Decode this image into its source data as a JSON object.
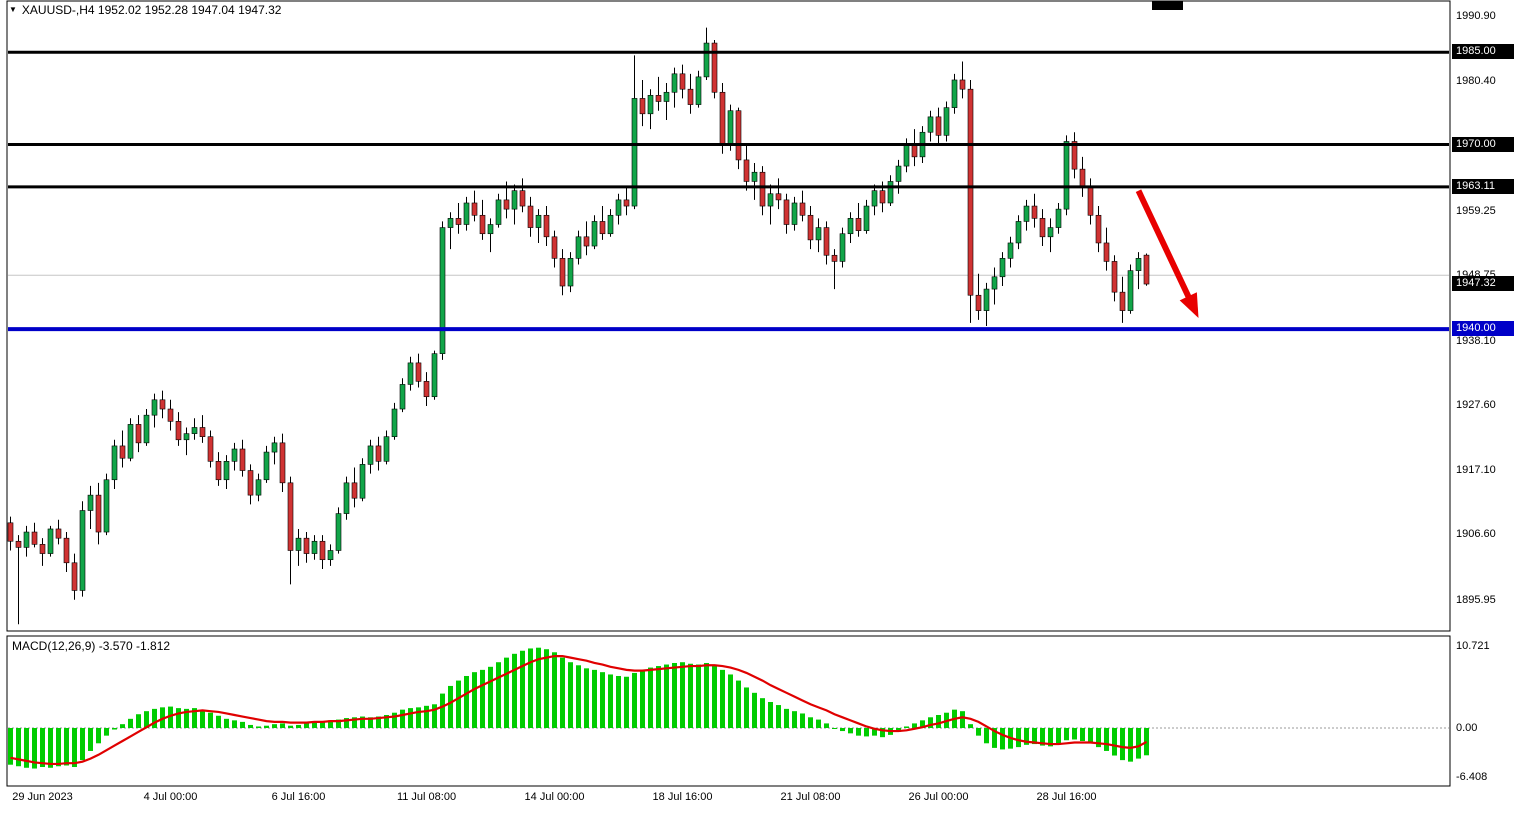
{
  "window": {
    "title": "XAUUSD-,H4 1952.02 1952.28 1947.04 1947.32",
    "caret_icon": "▼",
    "symbol": "XAUUSD-",
    "timeframe": "H4"
  },
  "colors": {
    "bull": "#12a549",
    "bear": "#d03333",
    "wick": "#000000",
    "histogram": "#00cc00",
    "signal": "#e00000",
    "arrow": "#e80000",
    "grid": "#c6c6c6",
    "level_black": "#000000",
    "level_blue": "#0000c8"
  },
  "chart_data": {
    "type": "candlestick",
    "title": "XAUUSD-,H4",
    "symbol": "XAUUSD-",
    "timeframe": "H4",
    "current_bar": {
      "open": 1952.02,
      "high": 1952.28,
      "low": 1947.04,
      "close": 1947.32
    },
    "price_axis": {
      "ticks": [
        "1990.90",
        "1980.40",
        "1959.25",
        "1948.75",
        "1938.10",
        "1927.60",
        "1917.10",
        "1906.60",
        "1895.95"
      ],
      "tick_values": [
        1990.9,
        1980.4,
        1959.25,
        1948.75,
        1938.1,
        1927.6,
        1917.1,
        1906.6,
        1895.95
      ],
      "range": [
        1895.95,
        1990.9
      ]
    },
    "level_lines": [
      {
        "price": 1985.0,
        "label": "1985.00",
        "color": "#000000",
        "width": 3
      },
      {
        "price": 1970.0,
        "label": "1970.00",
        "color": "#000000",
        "width": 3
      },
      {
        "price": 1963.11,
        "label": "1963.11",
        "color": "#000000",
        "width": 3
      },
      {
        "price": 1940.0,
        "label": "1940.00",
        "color": "#0000c8",
        "width": 4
      }
    ],
    "current_price_label": {
      "price": 1947.32,
      "label": "1947.32",
      "color": "#000000"
    },
    "grid_level": 1948.75,
    "time_axis": [
      {
        "index": 4,
        "label": "29 Jun 2023"
      },
      {
        "index": 20,
        "label": "4 Jul 00:00"
      },
      {
        "index": 36,
        "label": "6 Jul 16:00"
      },
      {
        "index": 52,
        "label": "11 Jul 08:00"
      },
      {
        "index": 68,
        "label": "14 Jul 00:00"
      },
      {
        "index": 84,
        "label": "18 Jul 16:00"
      },
      {
        "index": 100,
        "label": "21 Jul 08:00"
      },
      {
        "index": 116,
        "label": "26 Jul 00:00"
      },
      {
        "index": 132,
        "label": "28 Jul 16:00"
      }
    ],
    "trend_arrow": {
      "from_index": 141,
      "from_price": 1962.5,
      "to_index": 148.5,
      "to_price": 1941.8
    },
    "candles": [
      [
        1908.5,
        1909.5,
        1904.0,
        1905.5
      ],
      [
        1905.5,
        1906.5,
        1892.0,
        1904.5
      ],
      [
        1904.5,
        1908.0,
        1903.0,
        1907.0
      ],
      [
        1907.0,
        1908.5,
        1904.5,
        1905.0
      ],
      [
        1905.0,
        1906.0,
        1901.5,
        1903.5
      ],
      [
        1903.5,
        1908.0,
        1903.0,
        1907.5
      ],
      [
        1907.5,
        1909.0,
        1905.0,
        1906.0
      ],
      [
        1906.0,
        1907.0,
        1900.5,
        1902.0
      ],
      [
        1902.0,
        1903.5,
        1896.0,
        1897.5
      ],
      [
        1897.5,
        1912.0,
        1896.5,
        1910.5
      ],
      [
        1910.5,
        1914.5,
        1907.5,
        1913.0
      ],
      [
        1913.0,
        1915.0,
        1905.0,
        1907.0
      ],
      [
        1907.0,
        1916.5,
        1906.5,
        1915.5
      ],
      [
        1915.5,
        1922.0,
        1914.0,
        1921.0
      ],
      [
        1921.0,
        1923.5,
        1917.5,
        1919.0
      ],
      [
        1919.0,
        1925.5,
        1918.5,
        1924.5
      ],
      [
        1924.5,
        1926.0,
        1920.0,
        1921.5
      ],
      [
        1921.5,
        1927.0,
        1921.0,
        1926.0
      ],
      [
        1926.0,
        1929.5,
        1924.0,
        1928.5
      ],
      [
        1928.5,
        1930.0,
        1925.5,
        1927.0
      ],
      [
        1927.0,
        1928.5,
        1923.5,
        1925.0
      ],
      [
        1925.0,
        1926.5,
        1921.0,
        1922.0
      ],
      [
        1922.0,
        1924.0,
        1919.5,
        1923.0
      ],
      [
        1923.0,
        1925.5,
        1922.0,
        1924.0
      ],
      [
        1924.0,
        1926.0,
        1921.5,
        1922.5
      ],
      [
        1922.5,
        1923.5,
        1917.5,
        1918.5
      ],
      [
        1918.5,
        1920.0,
        1914.5,
        1915.5
      ],
      [
        1915.5,
        1919.5,
        1914.0,
        1918.5
      ],
      [
        1918.5,
        1921.5,
        1917.0,
        1920.5
      ],
      [
        1920.5,
        1922.0,
        1916.0,
        1917.0
      ],
      [
        1917.0,
        1918.0,
        1911.5,
        1913.0
      ],
      [
        1913.0,
        1916.5,
        1912.0,
        1915.5
      ],
      [
        1915.5,
        1921.0,
        1915.0,
        1920.0
      ],
      [
        1920.0,
        1922.5,
        1918.0,
        1921.5
      ],
      [
        1921.5,
        1923.0,
        1913.5,
        1915.0
      ],
      [
        1915.0,
        1916.0,
        1898.5,
        1904.0
      ],
      [
        1904.0,
        1907.5,
        1901.5,
        1906.0
      ],
      [
        1906.0,
        1907.0,
        1902.0,
        1903.5
      ],
      [
        1903.5,
        1906.5,
        1902.5,
        1905.5
      ],
      [
        1905.5,
        1906.5,
        1901.0,
        1902.5
      ],
      [
        1902.5,
        1905.0,
        1901.5,
        1904.0
      ],
      [
        1904.0,
        1911.0,
        1903.5,
        1910.0
      ],
      [
        1910.0,
        1916.0,
        1909.0,
        1915.0
      ],
      [
        1915.0,
        1917.5,
        1911.0,
        1912.5
      ],
      [
        1912.5,
        1919.0,
        1912.0,
        1918.0
      ],
      [
        1918.0,
        1922.0,
        1916.5,
        1921.0
      ],
      [
        1921.0,
        1922.5,
        1917.0,
        1918.5
      ],
      [
        1918.5,
        1923.5,
        1918.0,
        1922.5
      ],
      [
        1922.5,
        1928.0,
        1922.0,
        1927.0
      ],
      [
        1927.0,
        1932.0,
        1926.5,
        1931.0
      ],
      [
        1931.0,
        1935.5,
        1930.0,
        1934.5
      ],
      [
        1934.5,
        1936.0,
        1930.5,
        1931.5
      ],
      [
        1931.5,
        1933.0,
        1927.5,
        1929.0
      ],
      [
        1929.0,
        1936.5,
        1928.5,
        1936.0
      ],
      [
        1936.0,
        1957.5,
        1935.0,
        1956.5
      ],
      [
        1956.5,
        1959.0,
        1953.0,
        1958.0
      ],
      [
        1958.0,
        1960.5,
        1955.5,
        1957.0
      ],
      [
        1957.0,
        1961.5,
        1956.0,
        1960.5
      ],
      [
        1960.5,
        1962.5,
        1957.5,
        1958.5
      ],
      [
        1958.5,
        1961.0,
        1954.5,
        1955.5
      ],
      [
        1955.5,
        1958.0,
        1952.5,
        1957.0
      ],
      [
        1957.0,
        1962.0,
        1956.5,
        1961.0
      ],
      [
        1961.0,
        1964.0,
        1958.0,
        1959.5
      ],
      [
        1959.5,
        1963.5,
        1957.0,
        1962.5
      ],
      [
        1962.5,
        1964.5,
        1959.0,
        1960.0
      ],
      [
        1960.0,
        1961.5,
        1955.0,
        1956.5
      ],
      [
        1956.5,
        1959.5,
        1954.0,
        1958.5
      ],
      [
        1958.5,
        1960.0,
        1953.5,
        1955.0
      ],
      [
        1955.0,
        1956.0,
        1950.0,
        1951.5
      ],
      [
        1951.5,
        1953.0,
        1945.5,
        1947.0
      ],
      [
        1947.0,
        1952.5,
        1946.0,
        1951.5
      ],
      [
        1951.5,
        1956.0,
        1950.5,
        1955.0
      ],
      [
        1955.0,
        1957.5,
        1952.0,
        1953.5
      ],
      [
        1953.5,
        1958.5,
        1953.0,
        1957.5
      ],
      [
        1957.5,
        1960.0,
        1954.5,
        1955.5
      ],
      [
        1955.5,
        1959.5,
        1955.0,
        1958.5
      ],
      [
        1958.5,
        1962.0,
        1957.0,
        1961.0
      ],
      [
        1961.0,
        1963.0,
        1958.5,
        1960.0
      ],
      [
        1960.0,
        1984.5,
        1959.5,
        1977.5
      ],
      [
        1977.5,
        1980.5,
        1973.0,
        1975.0
      ],
      [
        1975.0,
        1979.0,
        1972.5,
        1978.0
      ],
      [
        1978.0,
        1981.0,
        1975.5,
        1977.0
      ],
      [
        1977.0,
        1980.0,
        1974.0,
        1978.5
      ],
      [
        1978.5,
        1982.5,
        1976.0,
        1981.5
      ],
      [
        1981.5,
        1983.0,
        1977.5,
        1979.0
      ],
      [
        1979.0,
        1981.5,
        1975.0,
        1976.5
      ],
      [
        1976.5,
        1982.0,
        1976.0,
        1981.0
      ],
      [
        1981.0,
        1989.0,
        1980.5,
        1986.5
      ],
      [
        1986.5,
        1987.0,
        1977.5,
        1978.5
      ],
      [
        1978.5,
        1980.0,
        1968.5,
        1970.0
      ],
      [
        1970.0,
        1976.5,
        1969.0,
        1975.5
      ],
      [
        1975.5,
        1976.0,
        1966.0,
        1967.5
      ],
      [
        1967.5,
        1970.0,
        1962.5,
        1964.0
      ],
      [
        1964.0,
        1967.0,
        1961.0,
        1965.5
      ],
      [
        1965.5,
        1966.5,
        1958.5,
        1960.0
      ],
      [
        1960.0,
        1963.5,
        1957.0,
        1962.0
      ],
      [
        1962.0,
        1964.5,
        1959.5,
        1961.0
      ],
      [
        1961.0,
        1962.0,
        1955.5,
        1957.0
      ],
      [
        1957.0,
        1961.5,
        1956.0,
        1960.5
      ],
      [
        1960.5,
        1962.5,
        1957.5,
        1958.5
      ],
      [
        1958.5,
        1960.0,
        1953.0,
        1954.5
      ],
      [
        1954.5,
        1958.0,
        1952.5,
        1956.5
      ],
      [
        1956.5,
        1957.5,
        1950.5,
        1952.0
      ],
      [
        1952.0,
        1953.0,
        1946.5,
        1951.0
      ],
      [
        1951.0,
        1956.5,
        1950.0,
        1955.5
      ],
      [
        1955.5,
        1959.0,
        1954.0,
        1958.0
      ],
      [
        1958.0,
        1960.5,
        1955.0,
        1956.0
      ],
      [
        1956.0,
        1961.0,
        1955.5,
        1960.0
      ],
      [
        1960.0,
        1963.5,
        1958.5,
        1962.5
      ],
      [
        1962.5,
        1964.0,
        1959.0,
        1960.5
      ],
      [
        1960.5,
        1965.0,
        1960.0,
        1964.0
      ],
      [
        1964.0,
        1967.5,
        1962.0,
        1966.5
      ],
      [
        1966.5,
        1971.0,
        1965.5,
        1970.0
      ],
      [
        1970.0,
        1972.5,
        1966.5,
        1968.0
      ],
      [
        1968.0,
        1973.0,
        1967.0,
        1972.0
      ],
      [
        1972.0,
        1975.5,
        1970.5,
        1974.5
      ],
      [
        1974.5,
        1976.0,
        1970.0,
        1971.5
      ],
      [
        1971.5,
        1977.0,
        1970.5,
        1976.0
      ],
      [
        1976.0,
        1981.5,
        1975.0,
        1980.5
      ],
      [
        1980.5,
        1983.5,
        1977.5,
        1979.0
      ],
      [
        1979.0,
        1980.5,
        1941.0,
        1945.5
      ],
      [
        1945.5,
        1949.0,
        1941.5,
        1943.0
      ],
      [
        1943.0,
        1947.5,
        1940.5,
        1946.5
      ],
      [
        1946.5,
        1950.0,
        1944.0,
        1948.5
      ],
      [
        1948.5,
        1952.5,
        1947.0,
        1951.5
      ],
      [
        1951.5,
        1955.0,
        1950.0,
        1954.0
      ],
      [
        1954.0,
        1958.5,
        1953.0,
        1957.5
      ],
      [
        1957.5,
        1961.0,
        1956.0,
        1960.0
      ],
      [
        1960.0,
        1962.0,
        1956.5,
        1958.0
      ],
      [
        1958.0,
        1959.5,
        1953.5,
        1955.0
      ],
      [
        1955.0,
        1958.0,
        1952.5,
        1956.5
      ],
      [
        1956.5,
        1960.5,
        1955.5,
        1959.5
      ],
      [
        1959.5,
        1971.5,
        1958.5,
        1970.5
      ],
      [
        1970.5,
        1972.0,
        1964.5,
        1966.0
      ],
      [
        1966.0,
        1968.0,
        1961.5,
        1963.0
      ],
      [
        1963.0,
        1964.5,
        1957.0,
        1958.5
      ],
      [
        1958.5,
        1960.0,
        1952.5,
        1954.0
      ],
      [
        1954.0,
        1956.5,
        1949.5,
        1951.0
      ],
      [
        1951.0,
        1952.0,
        1944.5,
        1946.0
      ],
      [
        1946.0,
        1948.5,
        1941.0,
        1943.0
      ],
      [
        1943.0,
        1950.5,
        1942.5,
        1949.5
      ],
      [
        1949.5,
        1952.5,
        1946.5,
        1951.5
      ],
      [
        1952.02,
        1952.28,
        1947.04,
        1947.32
      ]
    ],
    "macd": {
      "label": "MACD(12,26,9) -3.570 -1.812",
      "params": "12,26,9",
      "value": -3.57,
      "signal_value": -1.812,
      "axis_ticks": [
        "10.721",
        "0.00",
        "-6.408"
      ],
      "axis_tick_values": [
        10.721,
        0,
        -6.408
      ],
      "range": [
        -6.408,
        10.721
      ],
      "main": [
        -4.8,
        -5.0,
        -5.2,
        -5.3,
        -5.1,
        -5.2,
        -5.0,
        -4.9,
        -5.1,
        -4.2,
        -3.0,
        -2.0,
        -1.0,
        -0.2,
        0.5,
        1.2,
        1.8,
        2.2,
        2.5,
        2.7,
        2.8,
        2.6,
        2.5,
        2.6,
        2.4,
        2.0,
        1.6,
        1.2,
        1.0,
        0.8,
        0.4,
        0.2,
        0.3,
        0.5,
        0.6,
        0.3,
        0.4,
        0.6,
        0.8,
        0.9,
        1.0,
        1.1,
        1.3,
        1.4,
        1.5,
        1.4,
        1.5,
        1.7,
        2.0,
        2.4,
        2.6,
        2.7,
        2.9,
        3.1,
        4.5,
        5.5,
        6.2,
        6.8,
        7.3,
        7.6,
        8.0,
        8.6,
        9.2,
        9.7,
        10.1,
        10.4,
        10.5,
        10.3,
        9.9,
        9.2,
        8.6,
        8.2,
        7.8,
        7.6,
        7.3,
        7.0,
        6.8,
        6.7,
        7.2,
        7.6,
        7.9,
        8.1,
        8.3,
        8.5,
        8.6,
        8.4,
        8.3,
        8.5,
        8.2,
        7.6,
        7.0,
        6.2,
        5.3,
        4.6,
        3.9,
        3.4,
        3.0,
        2.5,
        2.2,
        1.9,
        1.4,
        1.1,
        0.6,
        0.0,
        -0.4,
        -0.7,
        -1.0,
        -1.1,
        -1.0,
        -1.2,
        -0.9,
        -0.5,
        0.2,
        0.6,
        1.0,
        1.4,
        1.7,
        2.0,
        2.4,
        2.2,
        0.5,
        -1.0,
        -2.0,
        -2.6,
        -2.8,
        -2.7,
        -2.5,
        -2.2,
        -2.1,
        -2.3,
        -2.4,
        -2.2,
        -1.6,
        -1.5,
        -1.7,
        -2.0,
        -2.5,
        -3.0,
        -3.6,
        -4.2,
        -4.4,
        -4.0,
        -3.57
      ],
      "signal": [
        -3.9,
        -4.1,
        -4.3,
        -4.5,
        -4.6,
        -4.7,
        -4.7,
        -4.6,
        -4.6,
        -4.4,
        -4.0,
        -3.5,
        -2.9,
        -2.3,
        -1.7,
        -1.1,
        -0.5,
        0.1,
        0.7,
        1.2,
        1.6,
        1.9,
        2.1,
        2.2,
        2.3,
        2.2,
        2.1,
        1.9,
        1.7,
        1.5,
        1.3,
        1.1,
        0.9,
        0.8,
        0.8,
        0.7,
        0.7,
        0.7,
        0.8,
        0.8,
        0.9,
        0.9,
        1.0,
        1.1,
        1.2,
        1.2,
        1.3,
        1.4,
        1.5,
        1.7,
        1.9,
        2.1,
        2.2,
        2.4,
        2.8,
        3.3,
        3.9,
        4.5,
        5.1,
        5.6,
        6.1,
        6.6,
        7.1,
        7.6,
        8.1,
        8.6,
        9.0,
        9.2,
        9.4,
        9.4,
        9.2,
        9.0,
        8.8,
        8.5,
        8.3,
        8.0,
        7.8,
        7.6,
        7.5,
        7.5,
        7.6,
        7.7,
        7.8,
        7.9,
        8.0,
        8.1,
        8.1,
        8.2,
        8.2,
        8.1,
        7.9,
        7.6,
        7.2,
        6.7,
        6.2,
        5.6,
        5.1,
        4.6,
        4.1,
        3.6,
        3.1,
        2.7,
        2.3,
        1.8,
        1.4,
        1.0,
        0.6,
        0.2,
        -0.1,
        -0.3,
        -0.4,
        -0.4,
        -0.3,
        -0.1,
        0.1,
        0.4,
        0.6,
        0.9,
        1.2,
        1.4,
        1.2,
        0.8,
        0.2,
        -0.4,
        -0.9,
        -1.3,
        -1.6,
        -1.8,
        -1.9,
        -2.0,
        -2.1,
        -2.1,
        -2.0,
        -1.9,
        -1.9,
        -1.9,
        -2.0,
        -2.1,
        -2.3,
        -2.5,
        -2.6,
        -2.4,
        -1.812
      ]
    }
  }
}
